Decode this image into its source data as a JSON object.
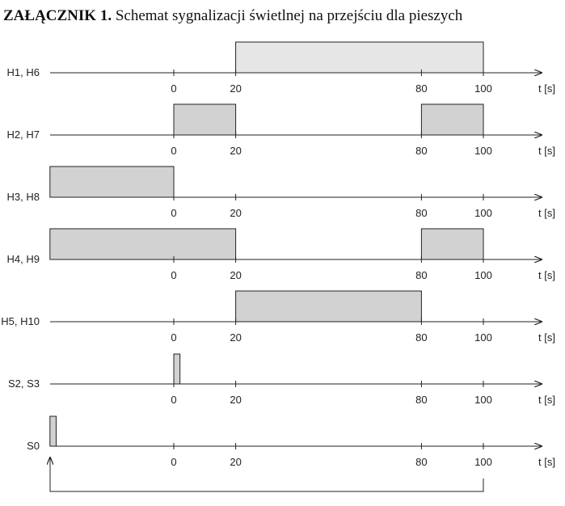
{
  "title": {
    "bold": "ZAŁĄCZNIK 1.",
    "text": " Schemat sygnalizacji świetlnej na przejściu dla pieszych"
  },
  "axis": {
    "unit": "t [s]",
    "tick_values": [
      0,
      20,
      80,
      100
    ],
    "tick_labels": [
      "0",
      "20",
      "80",
      "100"
    ],
    "t_visible_range": [
      -40,
      110
    ]
  },
  "colors": {
    "block_fill": "#d2d2d2",
    "block_fill_light": "#e6e6e6",
    "line": "#222222"
  },
  "rows": [
    {
      "label": "H1, H6",
      "blocks": [
        [
          20,
          100
        ]
      ],
      "light": true
    },
    {
      "label": "H2, H7",
      "blocks": [
        [
          0,
          20
        ],
        [
          80,
          100
        ]
      ]
    },
    {
      "label": "H3, H8",
      "blocks": [
        [
          -40,
          0
        ]
      ]
    },
    {
      "label": "H4, H9",
      "blocks": [
        [
          -40,
          20
        ],
        [
          80,
          100
        ]
      ]
    },
    {
      "label": "H5, H10",
      "blocks": [
        [
          20,
          80
        ]
      ]
    },
    {
      "label": "S2, S3",
      "blocks": [
        [
          0,
          2
        ]
      ]
    },
    {
      "label": "S0",
      "blocks": [
        [
          -40,
          -38
        ]
      ],
      "feedback": true
    }
  ]
}
